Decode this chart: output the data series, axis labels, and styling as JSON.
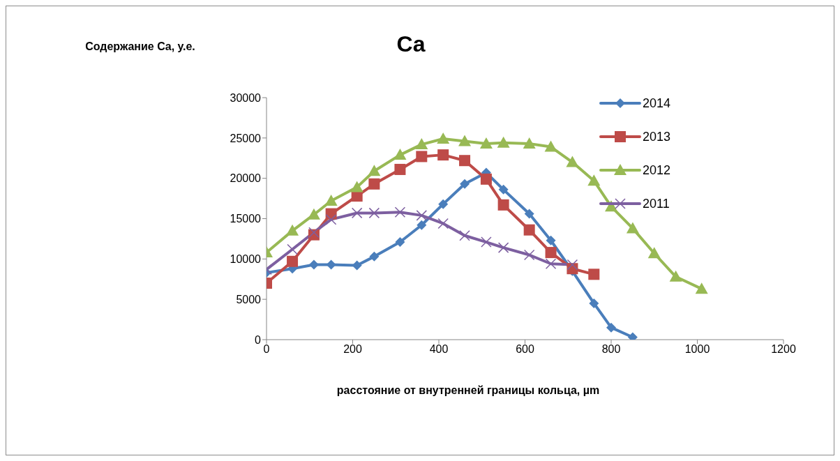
{
  "chart_data": {
    "type": "line",
    "title": "Ca",
    "ylabel": "Содержание Ca, у.е.",
    "xlabel": "расстояние от внутренней границы кольца, µm",
    "xlim": [
      0,
      1200
    ],
    "xticks": [
      0,
      200,
      400,
      600,
      800,
      1000,
      1200
    ],
    "ylim": [
      0,
      30000
    ],
    "yticks": [
      0,
      5000,
      10000,
      15000,
      20000,
      25000,
      30000
    ],
    "grid": false,
    "legend": "top right",
    "series": [
      {
        "name": "2014",
        "color": "#4a7ebb",
        "marker": "diamond",
        "x": [
          0,
          60,
          110,
          150,
          210,
          250,
          310,
          360,
          410,
          460,
          510,
          550,
          610,
          660,
          710,
          760,
          800,
          850
        ],
        "values": [
          8300,
          8800,
          9300,
          9300,
          9200,
          10300,
          12100,
          14200,
          16800,
          19300,
          20700,
          18600,
          15600,
          12300,
          8500,
          4500,
          1500,
          300
        ]
      },
      {
        "name": "2013",
        "color": "#be4b48",
        "marker": "square",
        "x": [
          0,
          60,
          110,
          150,
          210,
          250,
          310,
          360,
          410,
          460,
          510,
          550,
          610,
          660,
          710,
          760
        ],
        "values": [
          7000,
          9700,
          13000,
          15600,
          17800,
          19300,
          21100,
          22700,
          22900,
          22200,
          19900,
          16700,
          13600,
          10800,
          8800,
          8100
        ]
      },
      {
        "name": "2012",
        "color": "#98b954",
        "marker": "triangle",
        "x": [
          0,
          60,
          110,
          150,
          210,
          250,
          310,
          360,
          410,
          460,
          510,
          550,
          610,
          660,
          710,
          760,
          800,
          850,
          900,
          950,
          1010
        ],
        "values": [
          10800,
          13500,
          15500,
          17200,
          18900,
          20900,
          22900,
          24200,
          24900,
          24600,
          24300,
          24400,
          24300,
          23900,
          22000,
          19700,
          16500,
          13800,
          10700,
          7800,
          6300
        ]
      },
      {
        "name": "2011",
        "color": "#7d5fa0",
        "marker": "cross",
        "x": [
          0,
          60,
          110,
          150,
          210,
          250,
          310,
          360,
          410,
          460,
          510,
          550,
          610,
          660,
          710
        ],
        "values": [
          8700,
          11200,
          13300,
          14900,
          15700,
          15700,
          15800,
          15400,
          14400,
          12900,
          12100,
          11400,
          10500,
          9400,
          9300
        ]
      }
    ]
  }
}
